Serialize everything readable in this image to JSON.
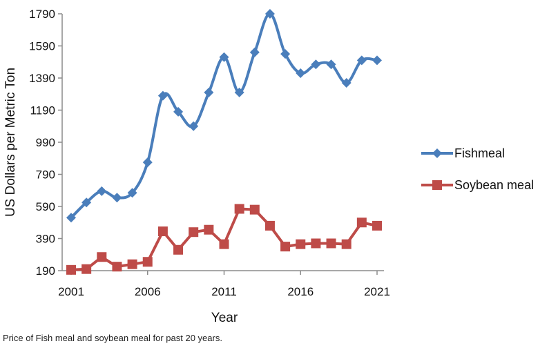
{
  "caption": "Price of Fish meal and soybean meal for past 20 years.",
  "chart_data": {
    "type": "line",
    "xlabel": "Year",
    "ylabel": "US Dollars per Metric Ton",
    "xlim": [
      2001,
      2021
    ],
    "ylim": [
      190,
      1790
    ],
    "x_ticks": [
      2001,
      2006,
      2011,
      2016,
      2021
    ],
    "y_ticks": [
      190,
      390,
      590,
      790,
      990,
      1190,
      1390,
      1590,
      1790
    ],
    "grid": false,
    "legend_position": "right",
    "x": [
      2001,
      2002,
      2003,
      2004,
      2005,
      2006,
      2007,
      2008,
      2009,
      2010,
      2011,
      2012,
      2013,
      2014,
      2015,
      2016,
      2017,
      2018,
      2019,
      2020,
      2021
    ],
    "series": [
      {
        "name": "Fishmeal",
        "color": "#4a7ebb",
        "marker": "diamond",
        "values": [
          520,
          615,
          685,
          645,
          675,
          865,
          1280,
          1180,
          1090,
          1300,
          1520,
          1300,
          1550,
          1790,
          1540,
          1420,
          1475,
          1475,
          1360,
          1500,
          1500
        ]
      },
      {
        "name": "Soybean meal",
        "color": "#be4b48",
        "marker": "square",
        "values": [
          195,
          200,
          275,
          215,
          230,
          245,
          435,
          320,
          430,
          445,
          355,
          575,
          570,
          470,
          340,
          355,
          360,
          360,
          355,
          490,
          470
        ]
      }
    ]
  }
}
